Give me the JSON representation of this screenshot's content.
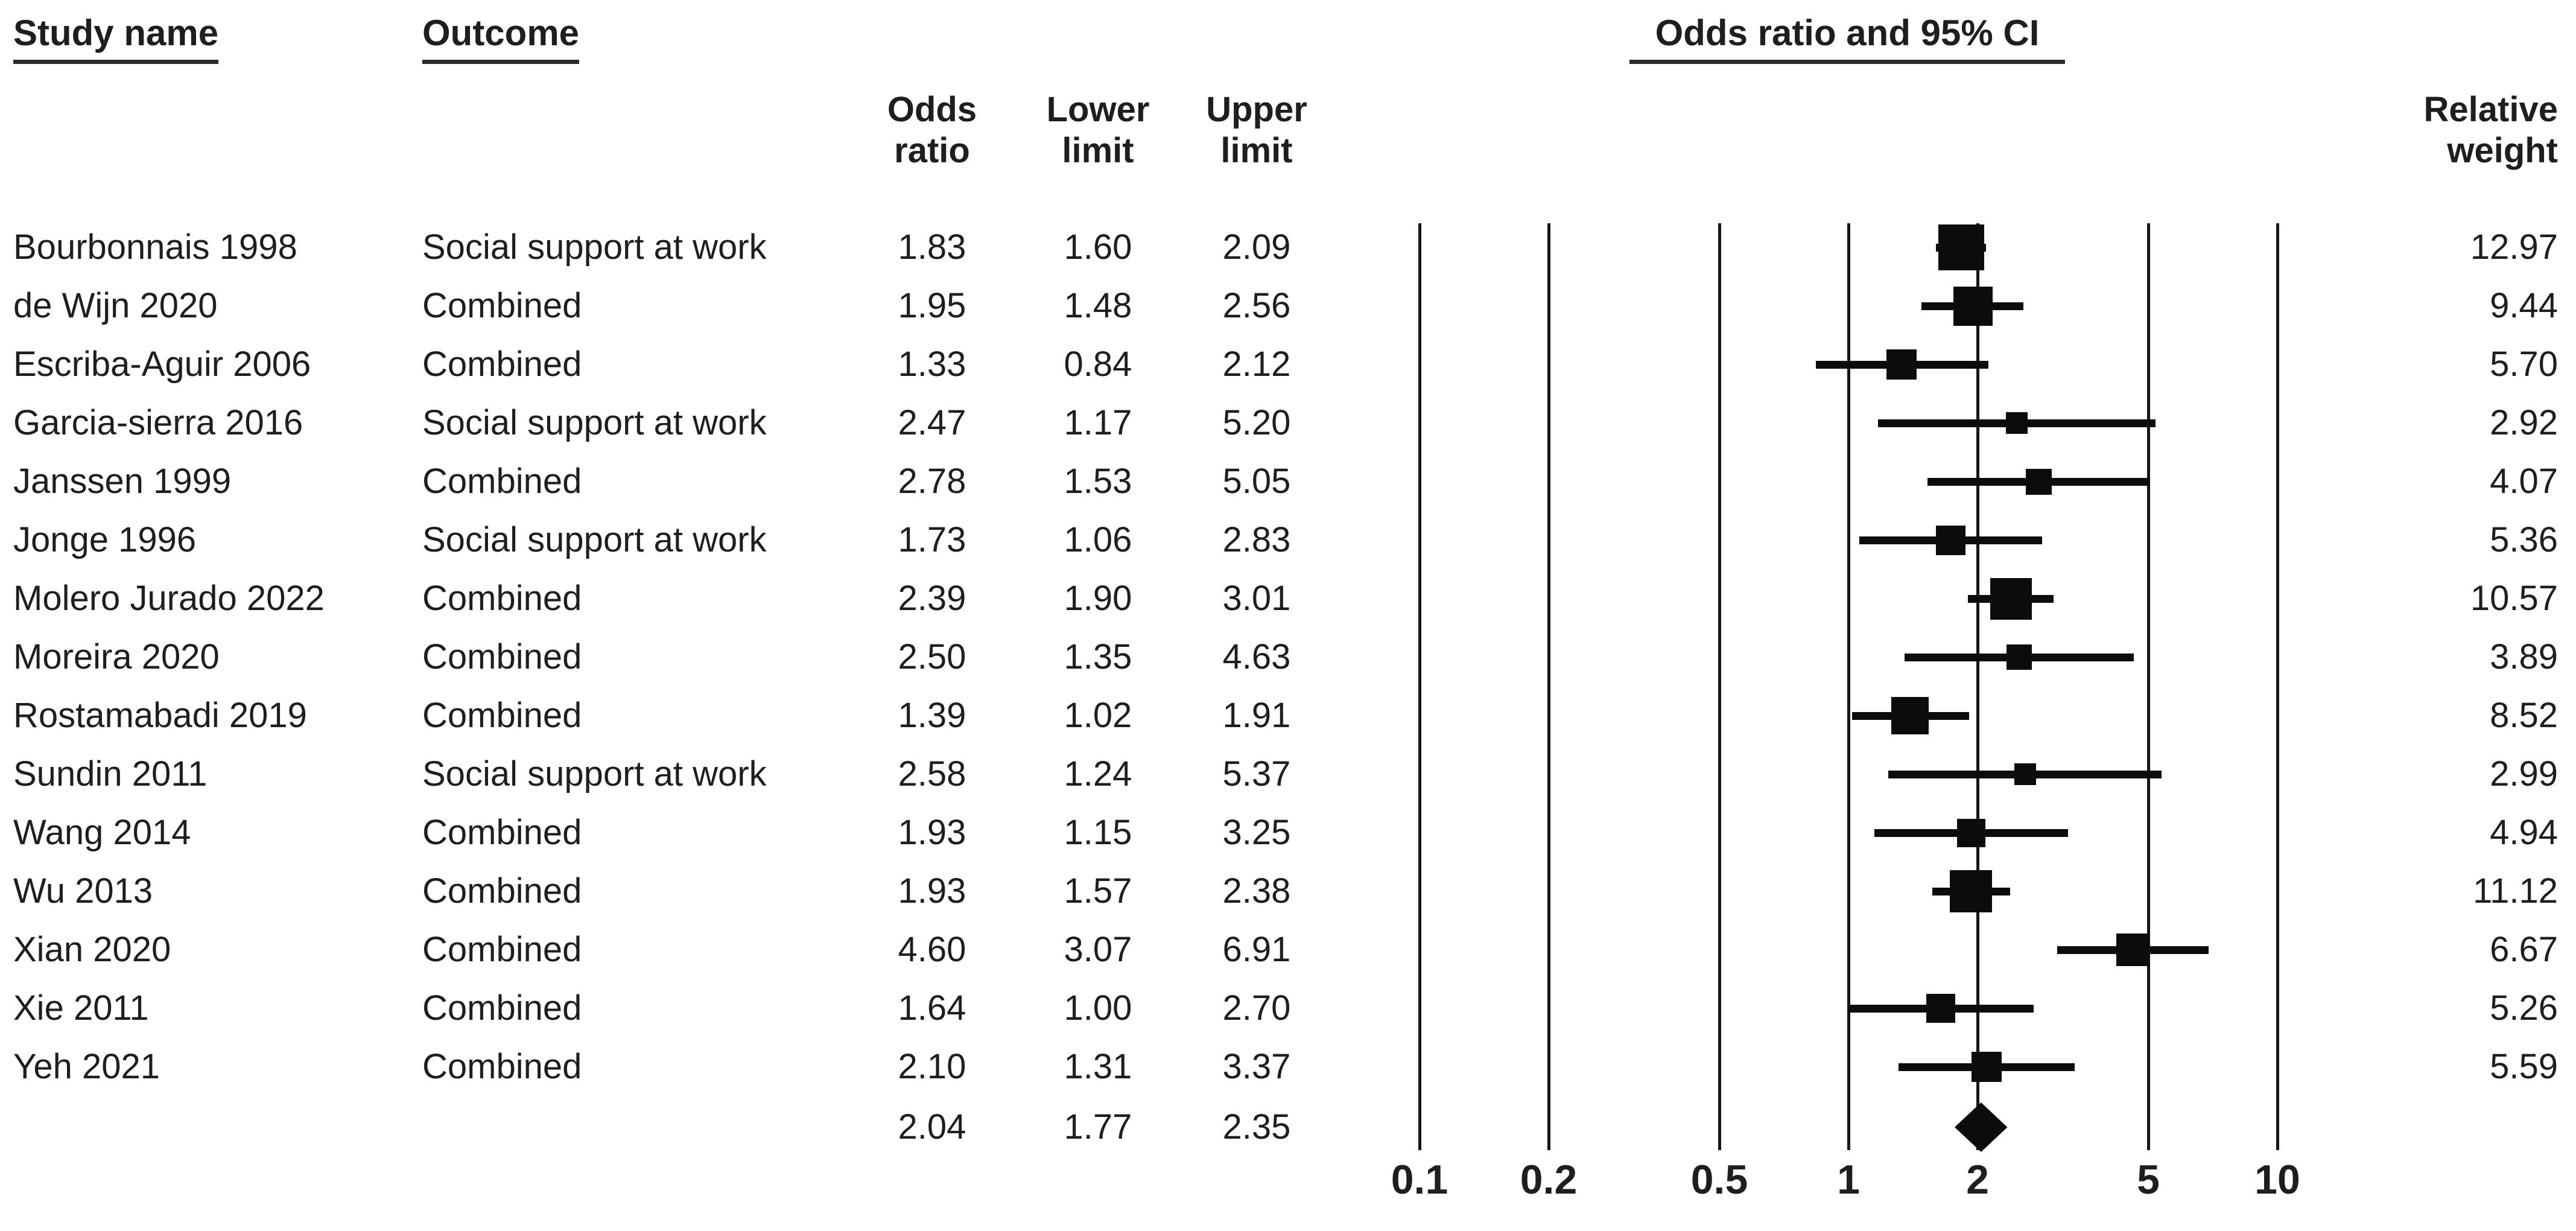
{
  "header": {
    "study_name": "Study name",
    "outcome": "Outcome",
    "or_ci": "Odds ratio and 95% CI",
    "col_odds_ratio": "Odds ratio",
    "col_lower_limit": "Lower limit",
    "col_upper_limit": "Upper limit",
    "col_relative_weight": "Relative weight"
  },
  "colors": {
    "ink": "#1e1e1e",
    "marker": "#0c0c0c",
    "background": "#ffffff"
  },
  "chart_data": {
    "type": "forest",
    "effect_measure": "Odds ratio",
    "x_scale": "log10",
    "xlim": [
      0.1,
      10
    ],
    "x_ticks": [
      0.1,
      0.2,
      0.5,
      1,
      2,
      5,
      10
    ],
    "grid": "vertical-lines-at-ticks",
    "studies": [
      {
        "name": "Bourbonnais 1998",
        "outcome": "Social support at work",
        "or": 1.83,
        "lower": 1.6,
        "upper": 2.09,
        "weight": 12.97
      },
      {
        "name": "de Wijn 2020",
        "outcome": "Combined",
        "or": 1.95,
        "lower": 1.48,
        "upper": 2.56,
        "weight": 9.44
      },
      {
        "name": "Escriba-Aguir 2006",
        "outcome": "Combined",
        "or": 1.33,
        "lower": 0.84,
        "upper": 2.12,
        "weight": 5.7
      },
      {
        "name": "Garcia-sierra 2016",
        "outcome": "Social support at work",
        "or": 2.47,
        "lower": 1.17,
        "upper": 5.2,
        "weight": 2.92
      },
      {
        "name": "Janssen 1999",
        "outcome": "Combined",
        "or": 2.78,
        "lower": 1.53,
        "upper": 5.05,
        "weight": 4.07
      },
      {
        "name": "Jonge 1996",
        "outcome": "Social support at work",
        "or": 1.73,
        "lower": 1.06,
        "upper": 2.83,
        "weight": 5.36
      },
      {
        "name": "Molero Jurado 2022",
        "outcome": "Combined",
        "or": 2.39,
        "lower": 1.9,
        "upper": 3.01,
        "weight": 10.57
      },
      {
        "name": "Moreira 2020",
        "outcome": "Combined",
        "or": 2.5,
        "lower": 1.35,
        "upper": 4.63,
        "weight": 3.89
      },
      {
        "name": "Rostamabadi 2019",
        "outcome": "Combined",
        "or": 1.39,
        "lower": 1.02,
        "upper": 1.91,
        "weight": 8.52
      },
      {
        "name": "Sundin 2011",
        "outcome": "Social support at work",
        "or": 2.58,
        "lower": 1.24,
        "upper": 5.37,
        "weight": 2.99
      },
      {
        "name": "Wang 2014",
        "outcome": "Combined",
        "or": 1.93,
        "lower": 1.15,
        "upper": 3.25,
        "weight": 4.94
      },
      {
        "name": "Wu 2013",
        "outcome": "Combined",
        "or": 1.93,
        "lower": 1.57,
        "upper": 2.38,
        "weight": 11.12
      },
      {
        "name": "Xian 2020",
        "outcome": "Combined",
        "or": 4.6,
        "lower": 3.07,
        "upper": 6.91,
        "weight": 6.67
      },
      {
        "name": "Xie 2011",
        "outcome": "Combined",
        "or": 1.64,
        "lower": 1.0,
        "upper": 2.7,
        "weight": 5.26
      },
      {
        "name": "Yeh 2021",
        "outcome": "Combined",
        "or": 2.1,
        "lower": 1.31,
        "upper": 3.37,
        "weight": 5.59
      }
    ],
    "pooled": {
      "or": 2.04,
      "lower": 1.77,
      "upper": 2.35
    }
  }
}
